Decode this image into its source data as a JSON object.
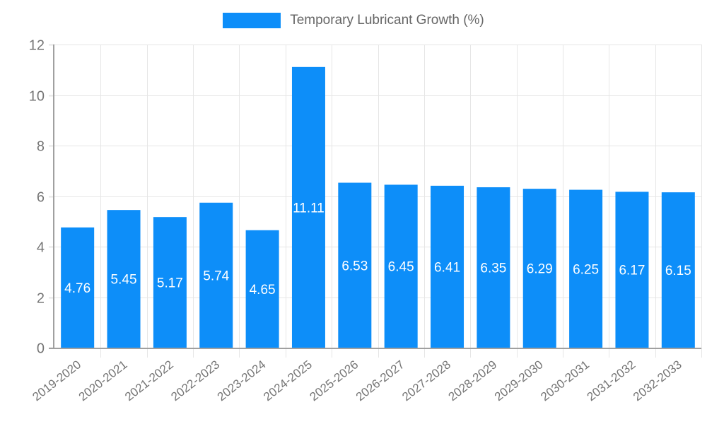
{
  "legend": {
    "position": "top"
  },
  "chart_data": {
    "type": "bar",
    "title": "Temporary Lubricant Growth (%)",
    "categories": [
      "2019-2020",
      "2020-2021",
      "2021-2022",
      "2022-2023",
      "2023-2024",
      "2024-2025",
      "2025-2026",
      "2026-2027",
      "2027-2028",
      "2028-2029",
      "2029-2030",
      "2030-2031",
      "2031-2032",
      "2032-2033"
    ],
    "values": [
      4.76,
      5.45,
      5.17,
      5.74,
      4.65,
      11.11,
      6.53,
      6.45,
      6.41,
      6.35,
      6.29,
      6.25,
      6.17,
      6.15
    ],
    "bar_value_labels": [
      "4.76",
      "5.45",
      "5.17",
      "5.74",
      "4.65",
      "11.11",
      "6.53",
      "6.45",
      "6.41",
      "6.35",
      "6.29",
      "6.25",
      "6.17",
      "6.15"
    ],
    "xlabel": "",
    "ylabel": "",
    "ylim": [
      0,
      12
    ],
    "yticks": [
      0,
      2,
      4,
      6,
      8,
      10,
      12
    ],
    "grid": true,
    "legend_position": "top",
    "colors": {
      "bar": "#0d8ef9",
      "bar_label": "#ffffff",
      "grid": "#e6e6e6",
      "axis": "#a0a0a0",
      "tick_label": "#757575",
      "legend_text": "#666666",
      "background": "#ffffff"
    }
  }
}
